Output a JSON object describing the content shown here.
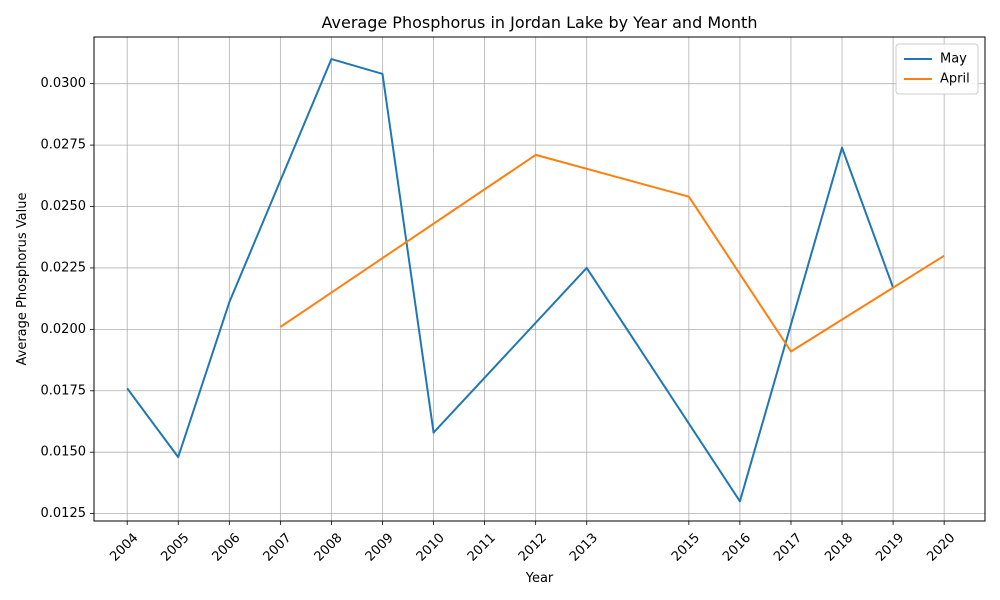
{
  "chart_data": {
    "type": "line",
    "title": "Average Phosphorus in Jordan Lake by Year and Month",
    "xlabel": "Year",
    "ylabel": "Average Phosphorus Value",
    "x_ticks": [
      2004,
      2005,
      2006,
      2007,
      2008,
      2009,
      2010,
      2011,
      2012,
      2013,
      2015,
      2016,
      2017,
      2018,
      2019,
      2020
    ],
    "x_tick_labels": [
      "2004",
      "2005",
      "2006",
      "2007",
      "2008",
      "2009",
      "2010",
      "2011",
      "2012",
      "2013",
      "2015",
      "2016",
      "2017",
      "2018",
      "2019",
      "2020"
    ],
    "y_ticks": [
      0.0125,
      0.015,
      0.0175,
      0.02,
      0.0225,
      0.025,
      0.0275,
      0.03
    ],
    "y_tick_labels": [
      "0.0125",
      "0.0150",
      "0.0175",
      "0.0200",
      "0.0225",
      "0.0250",
      "0.0275",
      "0.0300"
    ],
    "xlim": [
      2003.35,
      2020.8
    ],
    "ylim": [
      0.0122,
      0.0319
    ],
    "grid": true,
    "legend_position": "top-right",
    "series": [
      {
        "name": "May",
        "color": "#1f77b4",
        "x": [
          2004,
          2005,
          2006,
          2008,
          2009,
          2010,
          2013,
          2016,
          2018,
          2019
        ],
        "y": [
          0.0176,
          0.0148,
          0.0211,
          0.031,
          0.0304,
          0.0158,
          0.0225,
          0.013,
          0.0274,
          0.0217
        ]
      },
      {
        "name": "April",
        "color": "#ff7f0e",
        "x": [
          2007,
          2012,
          2015,
          2017,
          2020
        ],
        "y": [
          0.0201,
          0.0271,
          0.0254,
          0.0191,
          0.023
        ]
      }
    ]
  }
}
